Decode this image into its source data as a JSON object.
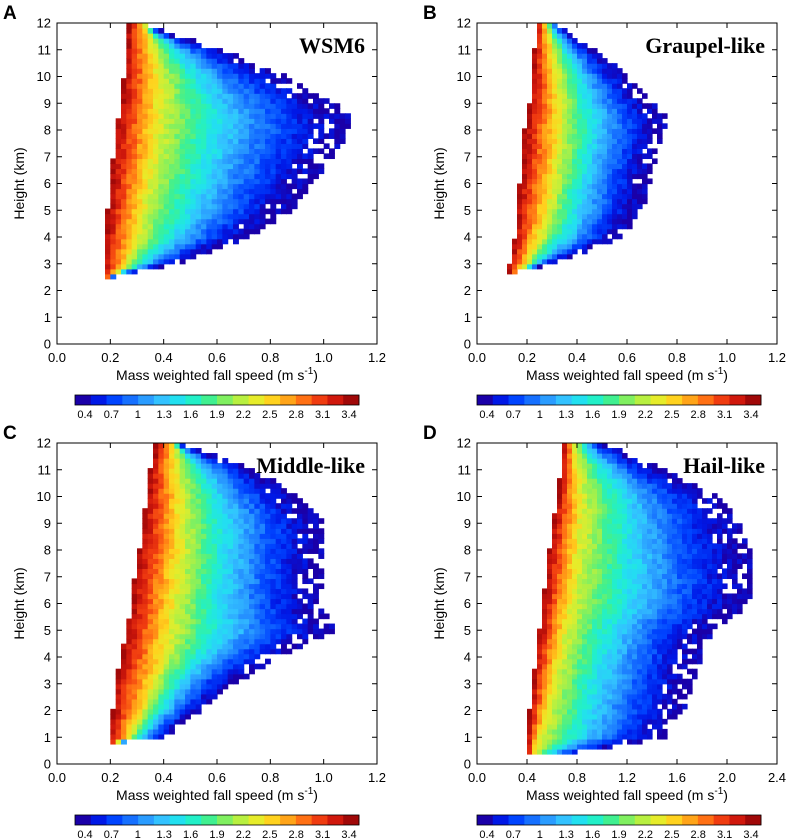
{
  "colorbar": {
    "labels": [
      "0.4",
      "0.7",
      "1",
      "1.3",
      "1.6",
      "1.9",
      "2.2",
      "2.5",
      "2.8",
      "3.1",
      "3.4"
    ],
    "colors": [
      "#1a00a8",
      "#0018e6",
      "#0044ff",
      "#1670ff",
      "#2a9cff",
      "#33c2ff",
      "#22e0f0",
      "#22f0c8",
      "#40f090",
      "#80f060",
      "#b8f040",
      "#e6ec2a",
      "#ffd21e",
      "#ffa418",
      "#ff7014",
      "#f03c10",
      "#d0180c",
      "#a00808"
    ]
  },
  "chart_data": [
    {
      "panel": "A",
      "type": "heatmap",
      "title": "WSM6",
      "xlabel": "Mass weighted fall speed (m s",
      "xlabel_sup": "-1",
      "ylabel": "Height (km)",
      "xlim": [
        0.0,
        1.2
      ],
      "ylim": [
        0,
        12
      ],
      "xticks": [
        "0.0",
        "0.2",
        "0.4",
        "0.6",
        "0.8",
        "1.0",
        "1.2"
      ],
      "yticks": [
        "0",
        "1",
        "2",
        "3",
        "4",
        "5",
        "6",
        "7",
        "8",
        "9",
        "10",
        "11",
        "12"
      ],
      "profile": {
        "heights": [
          2.5,
          3,
          4,
          5,
          6,
          7,
          8,
          8.5,
          9,
          10,
          11,
          12
        ],
        "left": [
          0.18,
          0.18,
          0.18,
          0.19,
          0.2,
          0.21,
          0.22,
          0.23,
          0.24,
          0.25,
          0.26,
          0.27
        ],
        "right": [
          0.2,
          0.45,
          0.72,
          0.88,
          0.96,
          1.04,
          1.1,
          1.1,
          1.04,
          0.86,
          0.62,
          0.3
        ],
        "peak": [
          0.2,
          0.26,
          0.3,
          0.32,
          0.34,
          0.36,
          0.37,
          0.38,
          0.38,
          0.38,
          0.36,
          0.33
        ]
      }
    },
    {
      "panel": "B",
      "type": "heatmap",
      "title": "Graupel-like",
      "xlabel": "Mass weighted fall speed (m s",
      "xlabel_sup": "-1",
      "ylabel": "Height (km)",
      "xlim": [
        0.0,
        1.2
      ],
      "ylim": [
        0,
        12
      ],
      "xticks": [
        "0.0",
        "0.2",
        "0.4",
        "0.6",
        "0.8",
        "1.0",
        "1.2"
      ],
      "yticks": [
        "0",
        "1",
        "2",
        "3",
        "4",
        "5",
        "6",
        "7",
        "8",
        "9",
        "10",
        "11",
        "12"
      ],
      "profile": {
        "heights": [
          2.7,
          3,
          4,
          5,
          6,
          7,
          8,
          8.5,
          9,
          10,
          11,
          12
        ],
        "left": [
          0.13,
          0.13,
          0.15,
          0.16,
          0.17,
          0.18,
          0.19,
          0.2,
          0.21,
          0.22,
          0.23,
          0.24
        ],
        "right": [
          0.16,
          0.3,
          0.58,
          0.66,
          0.69,
          0.72,
          0.76,
          0.76,
          0.7,
          0.6,
          0.48,
          0.32
        ],
        "peak": [
          0.16,
          0.2,
          0.25,
          0.28,
          0.3,
          0.32,
          0.33,
          0.33,
          0.33,
          0.32,
          0.3,
          0.28
        ]
      }
    },
    {
      "panel": "C",
      "type": "heatmap",
      "title": "Middle-like",
      "xlabel": "Mass weighted fall speed (m s",
      "xlabel_sup": "-1",
      "ylabel": "Height (km)",
      "xlim": [
        0.0,
        1.2
      ],
      "ylim": [
        0,
        12
      ],
      "xticks": [
        "0.0",
        "0.2",
        "0.4",
        "0.6",
        "0.8",
        "1.0",
        "1.2"
      ],
      "yticks": [
        "0",
        "1",
        "2",
        "3",
        "4",
        "5",
        "6",
        "7",
        "8",
        "9",
        "10",
        "11",
        "12"
      ],
      "profile": {
        "heights": [
          0.8,
          1,
          2,
          3,
          4,
          5,
          6,
          7,
          8,
          9,
          10,
          11,
          12
        ],
        "left": [
          0.2,
          0.2,
          0.21,
          0.22,
          0.24,
          0.26,
          0.28,
          0.29,
          0.31,
          0.32,
          0.34,
          0.35,
          0.37
        ],
        "right": [
          0.24,
          0.4,
          0.55,
          0.66,
          0.84,
          1.05,
          0.98,
          1.0,
          1.0,
          1.0,
          0.9,
          0.75,
          0.45
        ],
        "peak": [
          0.22,
          0.27,
          0.32,
          0.36,
          0.4,
          0.42,
          0.44,
          0.45,
          0.46,
          0.46,
          0.46,
          0.45,
          0.44
        ]
      }
    },
    {
      "panel": "D",
      "type": "heatmap",
      "title": "Hail-like",
      "xlabel": "Mass weighted fall speed (m s",
      "xlabel_sup": "-1",
      "ylabel": "Height (km)",
      "xlim": [
        0.0,
        2.4
      ],
      "ylim": [
        0,
        12
      ],
      "xticks": [
        "0.0",
        "0.4",
        "0.8",
        "1.2",
        "1.6",
        "2.0",
        "2.4"
      ],
      "yticks": [
        "0",
        "1",
        "2",
        "3",
        "4",
        "5",
        "6",
        "7",
        "8",
        "9",
        "10",
        "11",
        "12"
      ],
      "profile": {
        "heights": [
          0.3,
          1,
          2,
          3,
          4,
          5,
          6,
          7,
          8,
          9,
          10,
          11,
          12
        ],
        "left": [
          0.4,
          0.4,
          0.42,
          0.45,
          0.47,
          0.5,
          0.53,
          0.55,
          0.58,
          0.61,
          0.64,
          0.67,
          0.7
        ],
        "right": [
          0.7,
          1.5,
          1.65,
          1.72,
          1.8,
          1.9,
          2.2,
          2.22,
          2.18,
          2.1,
          1.95,
          1.5,
          1.0
        ],
        "peak": [
          0.45,
          0.5,
          0.56,
          0.6,
          0.65,
          0.7,
          0.74,
          0.78,
          0.8,
          0.82,
          0.82,
          0.8,
          0.78
        ]
      }
    }
  ]
}
